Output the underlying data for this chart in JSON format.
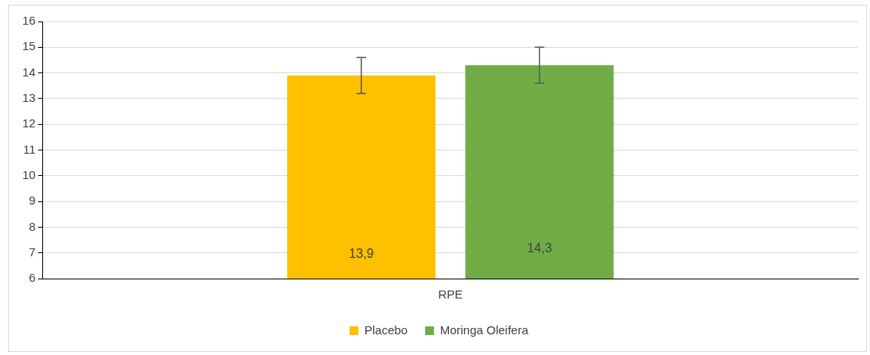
{
  "chart_data": {
    "type": "bar",
    "categories": [
      "RPE"
    ],
    "series": [
      {
        "name": "Placebo",
        "color": "#ffc000",
        "values": [
          13.9
        ],
        "errors": [
          0.7
        ],
        "value_labels": [
          "13,9"
        ]
      },
      {
        "name": "Moringa Oleifera",
        "color": "#70ad47",
        "values": [
          14.3
        ],
        "errors": [
          0.7
        ],
        "value_labels": [
          "14,3"
        ]
      }
    ],
    "ylim": [
      6,
      16
    ],
    "yticks": [
      6,
      7,
      8,
      9,
      10,
      11,
      12,
      13,
      14,
      15,
      16
    ],
    "grid": "y",
    "legend": "bottom"
  }
}
